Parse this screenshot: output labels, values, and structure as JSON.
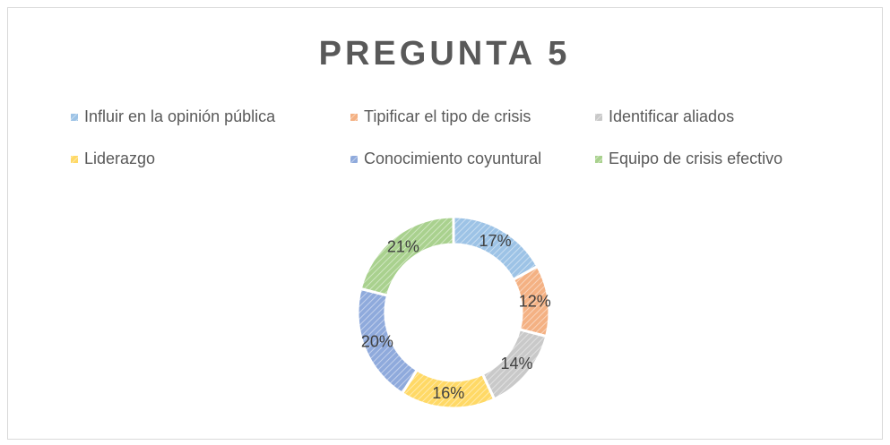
{
  "chart_data": {
    "type": "donut",
    "title": "PREGUNTA 5",
    "categories": [
      "Influir en la opinión pública",
      "Tipificar el tipo de crisis",
      "Identificar aliados",
      "Liderazgo",
      "Conocimiento coyuntural",
      "Equipo de crisis efectivo"
    ],
    "values": [
      17,
      12,
      14,
      16,
      20,
      21
    ],
    "value_labels": [
      "17%",
      "12%",
      "14%",
      "16%",
      "20%",
      "21%"
    ],
    "colors": [
      "#9dc3e6",
      "#f4b183",
      "#c9c9c9",
      "#ffd966",
      "#8faadc",
      "#a9d18e"
    ],
    "legend": "top"
  }
}
